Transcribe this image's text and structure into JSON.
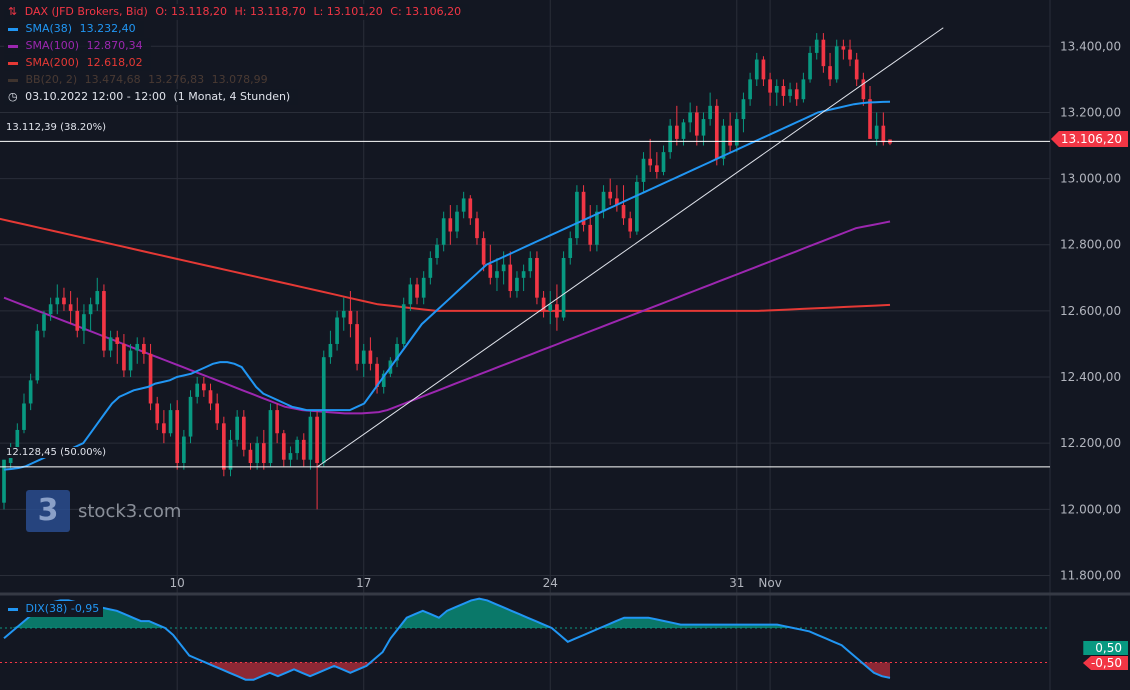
{
  "header": {
    "symbol_icon": "chart-candles-icon",
    "symbol": "DAX (JFD Brokers, Bid)",
    "open": "O: 13.118,20",
    "high": "H: 13.118,70",
    "low": "L: 13.101,20",
    "close": "C: 13.106,20"
  },
  "legend": {
    "sma38": {
      "label": "SMA(38)",
      "value": "13.232,40",
      "color": "#2196f3"
    },
    "sma100": {
      "label": "SMA(100)",
      "value": "12.870,34",
      "color": "#9c27b0"
    },
    "sma200": {
      "label": "SMA(200)",
      "value": "12.618,02",
      "color": "#e53935"
    },
    "bb": {
      "label": "BB(20, 2)",
      "v1": "13.474,68",
      "v2": "13.276,83",
      "v3": "13.078,99",
      "color": "#5d4037"
    },
    "period": {
      "icon": "clock-icon",
      "text": "03.10.2022 12:00 - 12:00",
      "note": "(1 Monat, 4 Stunden)"
    }
  },
  "logo": {
    "mark": "3",
    "text": "stock3.com"
  },
  "fib": {
    "upper": {
      "label": "13.112,39 (38.20%)",
      "price": 13112.39
    },
    "lower": {
      "label": "12.128,45 (50.00%)",
      "price": 12128.45
    }
  },
  "last_price": {
    "label": "13.106,20",
    "value": 13106.2,
    "color": "#f23645"
  },
  "indicator": {
    "label": "DIX(38)",
    "value": "-0,95",
    "upper_label": "0,50",
    "lower_label": "-0,50",
    "upper_color": "#089981",
    "lower_color": "#f23645"
  },
  "chart_data": {
    "type": "candlestick",
    "title": "DAX (JFD Brokers, Bid) 4h",
    "ylim": [
      11750,
      13540
    ],
    "y_ticks": [
      11800,
      12000,
      12200,
      12400,
      12600,
      12800,
      13000,
      13200,
      13400
    ],
    "y_tick_labels": [
      "11.800,00",
      "12.000,00",
      "12.200,00",
      "12.400,00",
      "12.600,00",
      "12.800,00",
      "13.000,00",
      "13.200,00",
      "13.400,00"
    ],
    "x_tick_labels": [
      "10",
      "17",
      "24",
      "31",
      "Nov"
    ],
    "x_tick_bar_index": [
      26,
      54,
      82,
      110,
      115
    ],
    "candles": [
      [
        12020,
        12150,
        12000,
        12150
      ],
      [
        12140,
        12200,
        12120,
        12180
      ],
      [
        12180,
        12260,
        12170,
        12240
      ],
      [
        12240,
        12350,
        12230,
        12320
      ],
      [
        12320,
        12410,
        12300,
        12390
      ],
      [
        12390,
        12560,
        12380,
        12540
      ],
      [
        12540,
        12600,
        12520,
        12590
      ],
      [
        12590,
        12640,
        12570,
        12620
      ],
      [
        12620,
        12680,
        12590,
        12640
      ],
      [
        12640,
        12670,
        12600,
        12620
      ],
      [
        12620,
        12660,
        12560,
        12600
      ],
      [
        12600,
        12640,
        12520,
        12540
      ],
      [
        12540,
        12620,
        12500,
        12590
      ],
      [
        12590,
        12640,
        12540,
        12620
      ],
      [
        12620,
        12700,
        12600,
        12660
      ],
      [
        12660,
        12680,
        12460,
        12480
      ],
      [
        12480,
        12540,
        12460,
        12520
      ],
      [
        12520,
        12540,
        12440,
        12500
      ],
      [
        12500,
        12530,
        12400,
        12420
      ],
      [
        12420,
        12500,
        12400,
        12480
      ],
      [
        12480,
        12520,
        12440,
        12500
      ],
      [
        12500,
        12520,
        12440,
        12470
      ],
      [
        12470,
        12500,
        12300,
        12320
      ],
      [
        12320,
        12340,
        12240,
        12260
      ],
      [
        12260,
        12300,
        12200,
        12230
      ],
      [
        12230,
        12320,
        12220,
        12300
      ],
      [
        12300,
        12330,
        12120,
        12140
      ],
      [
        12140,
        12240,
        12120,
        12220
      ],
      [
        12220,
        12360,
        12200,
        12340
      ],
      [
        12340,
        12400,
        12320,
        12380
      ],
      [
        12380,
        12400,
        12340,
        12360
      ],
      [
        12360,
        12380,
        12300,
        12320
      ],
      [
        12320,
        12350,
        12240,
        12260
      ],
      [
        12260,
        12280,
        12100,
        12120
      ],
      [
        12120,
        12240,
        12100,
        12210
      ],
      [
        12210,
        12300,
        12190,
        12280
      ],
      [
        12280,
        12300,
        12160,
        12180
      ],
      [
        12180,
        12200,
        12120,
        12140
      ],
      [
        12140,
        12220,
        12120,
        12200
      ],
      [
        12200,
        12240,
        12120,
        12140
      ],
      [
        12140,
        12320,
        12130,
        12300
      ],
      [
        12300,
        12320,
        12200,
        12230
      ],
      [
        12230,
        12240,
        12130,
        12150
      ],
      [
        12150,
        12190,
        12130,
        12170
      ],
      [
        12170,
        12220,
        12150,
        12210
      ],
      [
        12210,
        12230,
        12130,
        12150
      ],
      [
        12150,
        12300,
        12120,
        12280
      ],
      [
        12280,
        12300,
        12000,
        12140
      ],
      [
        12140,
        12480,
        12130,
        12460
      ],
      [
        12460,
        12540,
        12440,
        12500
      ],
      [
        12500,
        12600,
        12480,
        12580
      ],
      [
        12580,
        12640,
        12540,
        12600
      ],
      [
        12600,
        12660,
        12520,
        12560
      ],
      [
        12560,
        12600,
        12420,
        12440
      ],
      [
        12440,
        12500,
        12400,
        12480
      ],
      [
        12480,
        12520,
        12420,
        12440
      ],
      [
        12440,
        12460,
        12350,
        12370
      ],
      [
        12370,
        12420,
        12350,
        12410
      ],
      [
        12410,
        12460,
        12400,
        12450
      ],
      [
        12450,
        12520,
        12430,
        12500
      ],
      [
        12500,
        12640,
        12490,
        12620
      ],
      [
        12620,
        12700,
        12600,
        12680
      ],
      [
        12680,
        12700,
        12620,
        12640
      ],
      [
        12640,
        12720,
        12620,
        12700
      ],
      [
        12700,
        12780,
        12680,
        12760
      ],
      [
        12760,
        12820,
        12740,
        12800
      ],
      [
        12800,
        12900,
        12780,
        12880
      ],
      [
        12880,
        12920,
        12800,
        12840
      ],
      [
        12840,
        12920,
        12820,
        12900
      ],
      [
        12900,
        12960,
        12880,
        12940
      ],
      [
        12940,
        12950,
        12860,
        12880
      ],
      [
        12880,
        12900,
        12800,
        12820
      ],
      [
        12820,
        12840,
        12720,
        12740
      ],
      [
        12740,
        12800,
        12680,
        12700
      ],
      [
        12700,
        12760,
        12660,
        12720
      ],
      [
        12720,
        12780,
        12680,
        12740
      ],
      [
        12740,
        12780,
        12640,
        12660
      ],
      [
        12660,
        12720,
        12640,
        12700
      ],
      [
        12700,
        12740,
        12660,
        12720
      ],
      [
        12720,
        12780,
        12700,
        12760
      ],
      [
        12760,
        12780,
        12620,
        12640
      ],
      [
        12640,
        12660,
        12580,
        12600
      ],
      [
        12600,
        12660,
        12560,
        12620
      ],
      [
        12620,
        12680,
        12540,
        12580
      ],
      [
        12580,
        12780,
        12570,
        12760
      ],
      [
        12760,
        12840,
        12740,
        12820
      ],
      [
        12820,
        12980,
        12800,
        12960
      ],
      [
        12960,
        12980,
        12840,
        12860
      ],
      [
        12860,
        12920,
        12780,
        12800
      ],
      [
        12800,
        12920,
        12780,
        12900
      ],
      [
        12900,
        12980,
        12880,
        12960
      ],
      [
        12960,
        13000,
        12920,
        12940
      ],
      [
        12940,
        12980,
        12900,
        12920
      ],
      [
        12920,
        12980,
        12860,
        12880
      ],
      [
        12880,
        12900,
        12820,
        12840
      ],
      [
        12840,
        13010,
        12830,
        12990
      ],
      [
        12990,
        13080,
        12960,
        13060
      ],
      [
        13060,
        13120,
        13020,
        13040
      ],
      [
        13040,
        13080,
        13000,
        13020
      ],
      [
        13020,
        13100,
        13010,
        13080
      ],
      [
        13080,
        13180,
        13060,
        13160
      ],
      [
        13160,
        13220,
        13100,
        13120
      ],
      [
        13120,
        13180,
        13100,
        13170
      ],
      [
        13170,
        13230,
        13140,
        13200
      ],
      [
        13200,
        13220,
        13100,
        13130
      ],
      [
        13130,
        13200,
        13100,
        13180
      ],
      [
        13180,
        13260,
        13160,
        13220
      ],
      [
        13220,
        13240,
        13040,
        13060
      ],
      [
        13060,
        13180,
        13040,
        13160
      ],
      [
        13160,
        13200,
        13080,
        13100
      ],
      [
        13100,
        13200,
        13080,
        13180
      ],
      [
        13180,
        13260,
        13140,
        13240
      ],
      [
        13240,
        13320,
        13220,
        13300
      ],
      [
        13300,
        13380,
        13280,
        13360
      ],
      [
        13360,
        13370,
        13280,
        13300
      ],
      [
        13300,
        13320,
        13220,
        13260
      ],
      [
        13260,
        13300,
        13220,
        13280
      ],
      [
        13280,
        13300,
        13220,
        13250
      ],
      [
        13250,
        13290,
        13230,
        13270
      ],
      [
        13270,
        13290,
        13220,
        13240
      ],
      [
        13240,
        13320,
        13230,
        13300
      ],
      [
        13300,
        13400,
        13290,
        13380
      ],
      [
        13380,
        13440,
        13360,
        13420
      ],
      [
        13420,
        13440,
        13320,
        13340
      ],
      [
        13340,
        13380,
        13280,
        13300
      ],
      [
        13300,
        13420,
        13290,
        13400
      ],
      [
        13400,
        13420,
        13360,
        13390
      ],
      [
        13390,
        13420,
        13340,
        13360
      ],
      [
        13360,
        13380,
        13280,
        13300
      ],
      [
        13300,
        13320,
        13220,
        13240
      ],
      [
        13240,
        13280,
        13120,
        13120
      ],
      [
        13120,
        13200,
        13100,
        13160
      ],
      [
        13160,
        13200,
        13100,
        13110
      ],
      [
        13118.2,
        13118.7,
        13101.2,
        13106.2
      ]
    ],
    "sma38": [
      12120,
      12122,
      12125,
      12130,
      12140,
      12150,
      12160,
      12165,
      12170,
      12180,
      12190,
      12200,
      12230,
      12260,
      12290,
      12320,
      12340,
      12350,
      12360,
      12365,
      12370,
      12380,
      12385,
      12390,
      12400,
      12405,
      12410,
      12420,
      12430,
      12440,
      12445,
      12445,
      12440,
      12430,
      12400,
      12370,
      12350,
      12340,
      12330,
      12320,
      12310,
      12305,
      12300,
      12300,
      12300,
      12300,
      12300,
      12300,
      12300,
      12310,
      12320,
      12350,
      12380,
      12410,
      12440,
      12470,
      12500,
      12530,
      12560,
      12580,
      12600,
      12620,
      12640,
      12660,
      12680,
      12700,
      12720,
      12740,
      12750,
      12760,
      12770,
      12780,
      12790,
      12800,
      12810,
      12820,
      12830,
      12840,
      12850,
      12860,
      12870,
      12880,
      12890,
      12900,
      12910,
      12920,
      12930,
      12940,
      12950,
      12960,
      12970,
      12980,
      12990,
      13000,
      13010,
      13020,
      13030,
      13040,
      13050,
      13060,
      13070,
      13080,
      13090,
      13100,
      13110,
      13120,
      13130,
      13140,
      13150,
      13160,
      13170,
      13180,
      13190,
      13200,
      13205,
      13210,
      13215,
      13220,
      13225,
      13228,
      13230,
      13231,
      13232,
      13232.4
    ],
    "sma100": [
      12640,
      12630,
      12620,
      12610,
      12600,
      12590,
      12580,
      12570,
      12560,
      12550,
      12540,
      12530,
      12520,
      12510,
      12500,
      12490,
      12480,
      12470,
      12460,
      12450,
      12440,
      12430,
      12420,
      12410,
      12400,
      12390,
      12380,
      12370,
      12360,
      12350,
      12340,
      12330,
      12320,
      12310,
      12305,
      12300,
      12298,
      12296,
      12294,
      12292,
      12290,
      12290,
      12290,
      12292,
      12294,
      12300,
      12310,
      12320,
      12330,
      12340,
      12350,
      12360,
      12370,
      12380,
      12390,
      12400,
      12410,
      12420,
      12430,
      12440,
      12450,
      12460,
      12470,
      12480,
      12490,
      12500,
      12510,
      12520,
      12530,
      12540,
      12550,
      12560,
      12570,
      12580,
      12590,
      12600,
      12610,
      12620,
      12630,
      12640,
      12650,
      12660,
      12670,
      12680,
      12690,
      12700,
      12710,
      12720,
      12730,
      12740,
      12750,
      12760,
      12770,
      12780,
      12790,
      12800,
      12810,
      12820,
      12830,
      12840,
      12850,
      12855,
      12860,
      12865,
      12870.34
    ],
    "sma200": [
      12880,
      12870,
      12860,
      12850,
      12840,
      12830,
      12820,
      12810,
      12800,
      12790,
      12780,
      12770,
      12760,
      12750,
      12740,
      12730,
      12720,
      12710,
      12700,
      12690,
      12680,
      12670,
      12660,
      12650,
      12640,
      12630,
      12620,
      12615,
      12610,
      12605,
      12600,
      12600,
      12600,
      12600,
      12600,
      12600,
      12600,
      12600,
      12600,
      12600,
      12600,
      12600,
      12600,
      12600,
      12600,
      12600,
      12600,
      12600,
      12600,
      12600,
      12600,
      12600,
      12600,
      12602,
      12604,
      12606,
      12608,
      12610,
      12612,
      12614,
      12616,
      12618.02
    ],
    "trendline": {
      "from_bar": 47,
      "from_price": 12128,
      "to_bar": 125,
      "to_price": 13230
    },
    "dix_ylim": [
      -1.3,
      1.4
    ],
    "dix": [
      0.2,
      0.4,
      0.6,
      0.8,
      1.0,
      1.2,
      1.25,
      1.3,
      1.3,
      1.25,
      1.2,
      1.15,
      1.1,
      1.05,
      1.0,
      0.9,
      0.8,
      0.7,
      0.7,
      0.6,
      0.5,
      0.3,
      0.0,
      -0.3,
      -0.4,
      -0.5,
      -0.6,
      -0.7,
      -0.8,
      -0.9,
      -1.0,
      -1.0,
      -0.9,
      -0.8,
      -0.9,
      -0.8,
      -0.7,
      -0.8,
      -0.9,
      -0.8,
      -0.7,
      -0.6,
      -0.7,
      -0.8,
      -0.7,
      -0.6,
      -0.4,
      -0.2,
      0.2,
      0.5,
      0.8,
      0.9,
      1.0,
      0.9,
      0.8,
      1.0,
      1.1,
      1.2,
      1.3,
      1.35,
      1.3,
      1.2,
      1.1,
      1.0,
      0.9,
      0.8,
      0.7,
      0.6,
      0.5,
      0.3,
      0.1,
      0.2,
      0.3,
      0.4,
      0.5,
      0.6,
      0.7,
      0.8,
      0.8,
      0.8,
      0.8,
      0.75,
      0.7,
      0.65,
      0.6,
      0.6,
      0.6,
      0.6,
      0.6,
      0.6,
      0.6,
      0.6,
      0.6,
      0.6,
      0.6,
      0.6,
      0.6,
      0.55,
      0.5,
      0.45,
      0.4,
      0.3,
      0.2,
      0.1,
      0.0,
      -0.2,
      -0.4,
      -0.6,
      -0.8,
      -0.9,
      -0.95
    ]
  }
}
